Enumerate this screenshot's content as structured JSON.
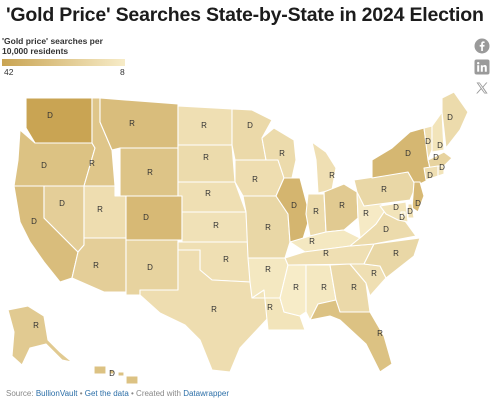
{
  "title": "'Gold Price' Searches State-by-State in 2024 Election",
  "legend": {
    "title": "'Gold price' searches per 10,000 residents",
    "min_label": "42",
    "max_label": "8",
    "color_high": "#c9a453",
    "color_low": "#f7ecc8"
  },
  "share_icons": [
    "facebook-icon",
    "linkedin-icon",
    "x-icon"
  ],
  "footer": {
    "source_prefix": "Source:",
    "source_link": "BullionVault",
    "separator1": "•",
    "get_data_link": "Get the data",
    "separator2": "• Created with",
    "datawrapper_link": "Datawrapper"
  },
  "states": {
    "WA": "D",
    "OR": "D",
    "CA": "D",
    "NV": "D",
    "ID": "R",
    "MT": "R",
    "WY": "R",
    "UT": "R",
    "AZ": "R",
    "CO": "D",
    "NM": "D",
    "ND": "R",
    "SD": "R",
    "NE": "R",
    "KS": "R",
    "OK": "R",
    "TX": "R",
    "MN": "D",
    "IA": "R",
    "MO": "R",
    "AR": "R",
    "LA": "R",
    "WI": "R",
    "IL": "D",
    "MI": "R",
    "IN": "R",
    "OH": "R",
    "KY": "R",
    "TN": "R",
    "MS": "R",
    "AL": "R",
    "GA": "R",
    "FL": "R",
    "SC": "R",
    "NC": "R",
    "VA": "D",
    "WV": "R",
    "PA": "R",
    "NY": "D",
    "VT": "D",
    "NH": "D",
    "ME": "D",
    "MA": "D",
    "CT": "D",
    "RI": "D",
    "NJ": "D",
    "DE": "D",
    "MD": "D",
    "DC": "D",
    "AK": "R",
    "HI": "D"
  },
  "searches_per_10k": {
    "WA": 42,
    "OR": 28,
    "CA": 30,
    "NV": 22,
    "ID": 26,
    "MT": 30,
    "WY": 27,
    "UT": 15,
    "AZ": 22,
    "CO": 32,
    "NM": 20,
    "ND": 14,
    "SD": 16,
    "NE": 14,
    "KS": 13,
    "OK": 14,
    "TX": 15,
    "MN": 17,
    "IA": 15,
    "MO": 18,
    "AR": 10,
    "LA": 12,
    "WI": 16,
    "IL": 34,
    "MI": 14,
    "IN": 16,
    "OH": 24,
    "KY": 10,
    "TN": 14,
    "MS": 8,
    "AL": 10,
    "GA": 17,
    "FL": 28,
    "SC": 14,
    "NC": 18,
    "VA": 16,
    "WV": 9,
    "PA": 18,
    "NY": 33,
    "VT": 14,
    "NH": 12,
    "ME": 16,
    "MA": 20,
    "CT": 14,
    "RI": 12,
    "NJ": 32,
    "DE": 14,
    "MD": 12,
    "DC": 10,
    "AK": 24,
    "HI": 28
  }
}
